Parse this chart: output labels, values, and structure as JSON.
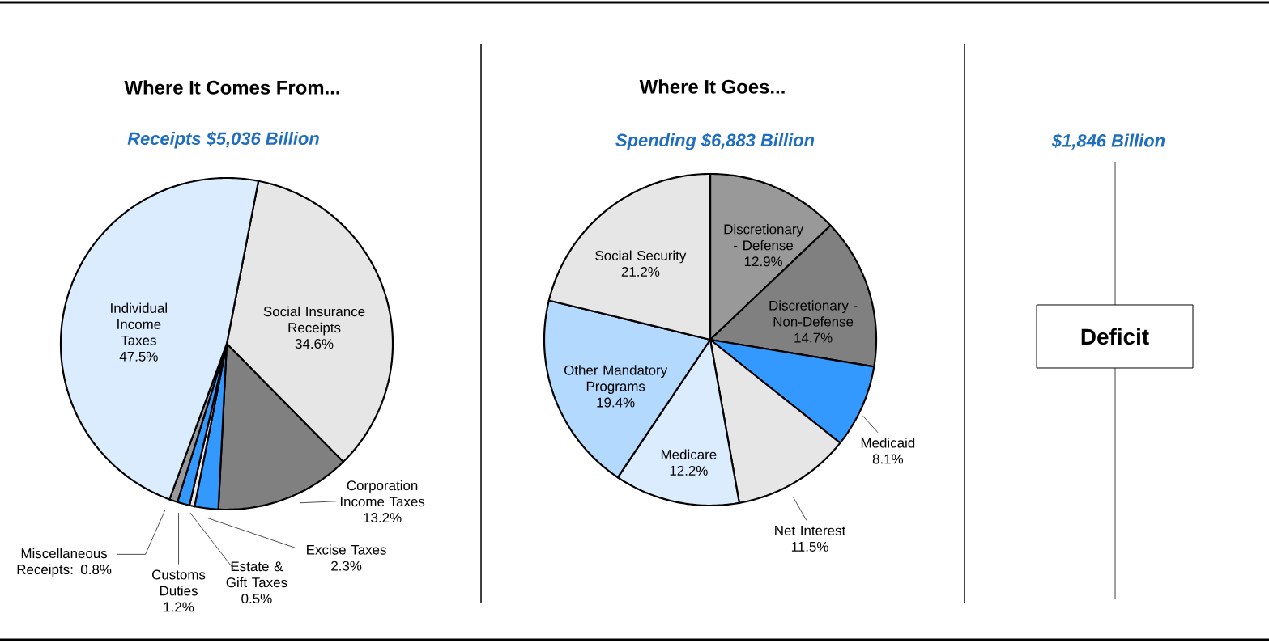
{
  "chart_data": [
    {
      "type": "pie",
      "title": "Where It Comes From...",
      "subtitle": "Receipts $5,036 Billion",
      "categories": [
        "Social Insurance Receipts",
        "Corporation Income Taxes",
        "Excise Taxes",
        "Estate & Gift Taxes",
        "Customs Duties",
        "Miscellaneous Receipts",
        "Individual Income Taxes"
      ],
      "values": [
        34.6,
        13.2,
        2.3,
        0.5,
        1.2,
        0.8,
        47.5
      ],
      "value_labels": [
        "34.6%",
        "13.2%",
        "2.3%",
        "0.5%",
        "1.2%",
        ": 0.8%",
        "47.5%"
      ],
      "colors": [
        "#e6e6e6",
        "#808080",
        "#3399ff",
        "#e6e6e6",
        "#3399ff",
        "#999999",
        "#dbecff"
      ]
    },
    {
      "type": "pie",
      "title": "Where It Goes...",
      "subtitle": "Spending $6,883 Billion",
      "categories": [
        "Discretionary - Defense",
        "Discretionary - Non-Defense",
        "Medicaid",
        "Net Interest",
        "Medicare",
        "Other Mandatory Programs",
        "Social Security"
      ],
      "values": [
        12.9,
        14.7,
        8.1,
        11.5,
        12.2,
        19.4,
        21.2
      ],
      "value_labels": [
        "12.9%",
        "14.7%",
        "8.1%",
        "11.5%",
        "12.2%",
        "19.4%",
        "21.2%"
      ],
      "colors": [
        "#999999",
        "#808080",
        "#3399ff",
        "#e6e6e6",
        "#dbecff",
        "#b3d9ff",
        "#e6e6e6"
      ]
    },
    {
      "type": "other",
      "subtitle": "$1,846 Billion",
      "annotations": [
        "Deficit"
      ]
    }
  ]
}
